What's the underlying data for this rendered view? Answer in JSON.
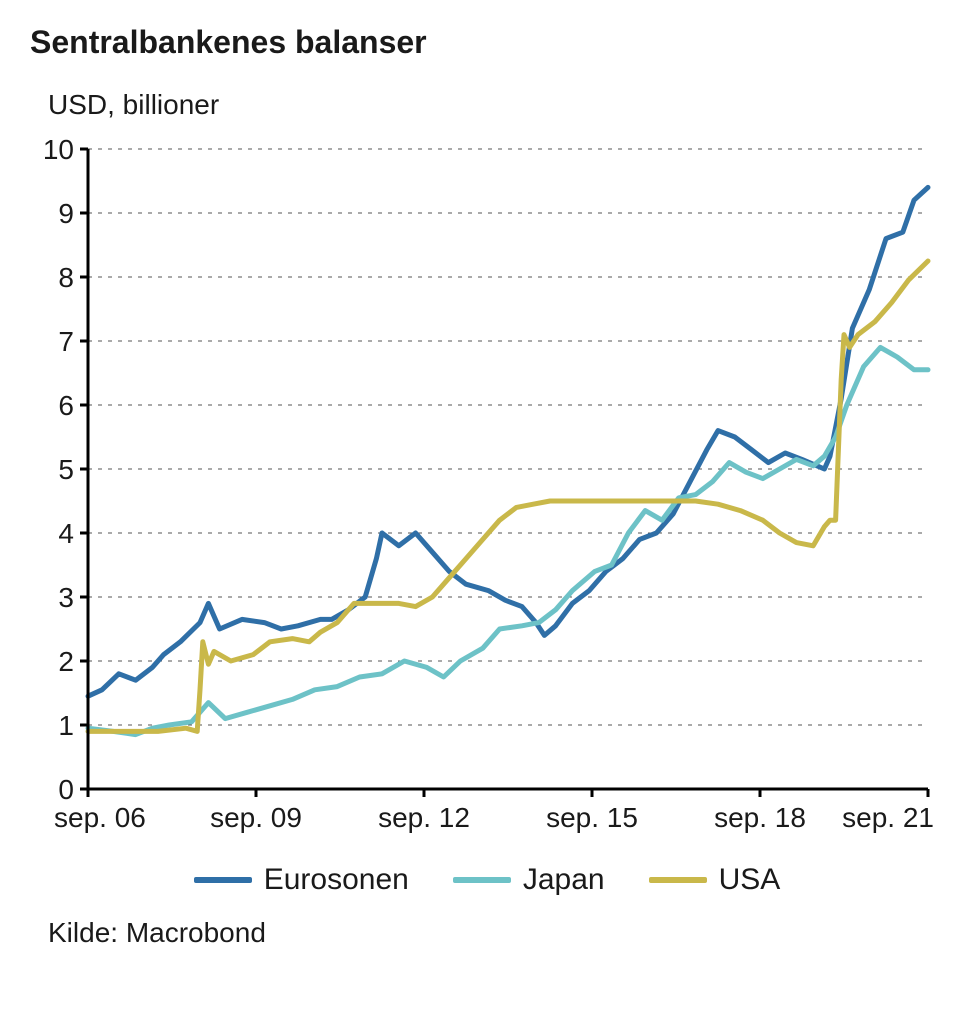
{
  "title": "Sentralbankenes balanser",
  "subtitle": "USD, billioner",
  "source": "Kilde: Macrobond",
  "chart": {
    "type": "line",
    "background_color": "#ffffff",
    "axis_color": "#000000",
    "grid_color": "#555555",
    "grid_dash": "4 6",
    "line_width": 5,
    "title_fontsize": 32,
    "label_fontsize": 28,
    "x": {
      "min": 2006.75,
      "max": 2021.75,
      "ticks": [
        2006.75,
        2009.75,
        2012.75,
        2015.75,
        2018.75,
        2021.75
      ],
      "tick_labels": [
        "sep. 06",
        "sep. 09",
        "sep. 12",
        "sep. 15",
        "sep. 18",
        "sep. 21"
      ]
    },
    "y": {
      "min": 0,
      "max": 10,
      "ticks": [
        0,
        1,
        2,
        3,
        4,
        5,
        6,
        7,
        8,
        9,
        10
      ],
      "tick_labels": [
        "0",
        "1",
        "2",
        "3",
        "4",
        "5",
        "6",
        "7",
        "8",
        "9",
        "10"
      ]
    },
    "series": [
      {
        "name": "Eurosonen",
        "color": "#2f6fa7",
        "points": [
          [
            2006.75,
            1.45
          ],
          [
            2007.0,
            1.55
          ],
          [
            2007.3,
            1.8
          ],
          [
            2007.6,
            1.7
          ],
          [
            2007.9,
            1.9
          ],
          [
            2008.1,
            2.1
          ],
          [
            2008.4,
            2.3
          ],
          [
            2008.75,
            2.6
          ],
          [
            2008.9,
            2.9
          ],
          [
            2009.1,
            2.5
          ],
          [
            2009.5,
            2.65
          ],
          [
            2009.9,
            2.6
          ],
          [
            2010.2,
            2.5
          ],
          [
            2010.5,
            2.55
          ],
          [
            2010.9,
            2.65
          ],
          [
            2011.1,
            2.65
          ],
          [
            2011.4,
            2.8
          ],
          [
            2011.7,
            3.0
          ],
          [
            2011.9,
            3.6
          ],
          [
            2012.0,
            4.0
          ],
          [
            2012.3,
            3.8
          ],
          [
            2012.6,
            4.0
          ],
          [
            2012.9,
            3.7
          ],
          [
            2013.2,
            3.4
          ],
          [
            2013.5,
            3.2
          ],
          [
            2013.9,
            3.1
          ],
          [
            2014.2,
            2.95
          ],
          [
            2014.5,
            2.85
          ],
          [
            2014.75,
            2.6
          ],
          [
            2014.9,
            2.4
          ],
          [
            2015.1,
            2.55
          ],
          [
            2015.4,
            2.9
          ],
          [
            2015.7,
            3.1
          ],
          [
            2016.0,
            3.4
          ],
          [
            2016.3,
            3.6
          ],
          [
            2016.6,
            3.9
          ],
          [
            2016.9,
            4.0
          ],
          [
            2017.2,
            4.3
          ],
          [
            2017.5,
            4.8
          ],
          [
            2017.8,
            5.3
          ],
          [
            2018.0,
            5.6
          ],
          [
            2018.3,
            5.5
          ],
          [
            2018.6,
            5.3
          ],
          [
            2018.9,
            5.1
          ],
          [
            2019.2,
            5.25
          ],
          [
            2019.5,
            5.15
          ],
          [
            2019.9,
            5.0
          ],
          [
            2020.0,
            5.2
          ],
          [
            2020.2,
            6.1
          ],
          [
            2020.4,
            7.2
          ],
          [
            2020.7,
            7.8
          ],
          [
            2021.0,
            8.6
          ],
          [
            2021.3,
            8.7
          ],
          [
            2021.5,
            9.2
          ],
          [
            2021.75,
            9.4
          ]
        ]
      },
      {
        "name": "Japan",
        "color": "#6dc2c7",
        "points": [
          [
            2006.75,
            0.95
          ],
          [
            2007.2,
            0.9
          ],
          [
            2007.6,
            0.85
          ],
          [
            2007.9,
            0.95
          ],
          [
            2008.2,
            1.0
          ],
          [
            2008.6,
            1.05
          ],
          [
            2008.9,
            1.35
          ],
          [
            2009.2,
            1.1
          ],
          [
            2009.6,
            1.2
          ],
          [
            2010.0,
            1.3
          ],
          [
            2010.4,
            1.4
          ],
          [
            2010.8,
            1.55
          ],
          [
            2011.2,
            1.6
          ],
          [
            2011.6,
            1.75
          ],
          [
            2012.0,
            1.8
          ],
          [
            2012.4,
            2.0
          ],
          [
            2012.8,
            1.9
          ],
          [
            2013.1,
            1.75
          ],
          [
            2013.4,
            2.0
          ],
          [
            2013.8,
            2.2
          ],
          [
            2014.1,
            2.5
          ],
          [
            2014.5,
            2.55
          ],
          [
            2014.8,
            2.6
          ],
          [
            2015.1,
            2.8
          ],
          [
            2015.4,
            3.1
          ],
          [
            2015.8,
            3.4
          ],
          [
            2016.1,
            3.5
          ],
          [
            2016.4,
            4.0
          ],
          [
            2016.7,
            4.35
          ],
          [
            2017.0,
            4.2
          ],
          [
            2017.3,
            4.55
          ],
          [
            2017.6,
            4.6
          ],
          [
            2017.9,
            4.8
          ],
          [
            2018.2,
            5.1
          ],
          [
            2018.5,
            4.95
          ],
          [
            2018.8,
            4.85
          ],
          [
            2019.1,
            5.0
          ],
          [
            2019.4,
            5.15
          ],
          [
            2019.7,
            5.05
          ],
          [
            2019.9,
            5.2
          ],
          [
            2020.1,
            5.5
          ],
          [
            2020.3,
            6.0
          ],
          [
            2020.6,
            6.6
          ],
          [
            2020.9,
            6.9
          ],
          [
            2021.2,
            6.75
          ],
          [
            2021.5,
            6.55
          ],
          [
            2021.75,
            6.55
          ]
        ]
      },
      {
        "name": "USA",
        "color": "#c9b84a",
        "points": [
          [
            2006.75,
            0.9
          ],
          [
            2007.2,
            0.9
          ],
          [
            2007.6,
            0.9
          ],
          [
            2008.0,
            0.9
          ],
          [
            2008.5,
            0.95
          ],
          [
            2008.7,
            0.9
          ],
          [
            2008.75,
            1.55
          ],
          [
            2008.8,
            2.3
          ],
          [
            2008.9,
            1.95
          ],
          [
            2009.0,
            2.15
          ],
          [
            2009.3,
            2.0
          ],
          [
            2009.7,
            2.1
          ],
          [
            2010.0,
            2.3
          ],
          [
            2010.4,
            2.35
          ],
          [
            2010.7,
            2.3
          ],
          [
            2010.9,
            2.45
          ],
          [
            2011.2,
            2.6
          ],
          [
            2011.5,
            2.9
          ],
          [
            2011.8,
            2.9
          ],
          [
            2012.0,
            2.9
          ],
          [
            2012.3,
            2.9
          ],
          [
            2012.6,
            2.85
          ],
          [
            2012.9,
            3.0
          ],
          [
            2013.2,
            3.3
          ],
          [
            2013.5,
            3.6
          ],
          [
            2013.8,
            3.9
          ],
          [
            2014.1,
            4.2
          ],
          [
            2014.4,
            4.4
          ],
          [
            2014.7,
            4.45
          ],
          [
            2015.0,
            4.5
          ],
          [
            2015.3,
            4.5
          ],
          [
            2015.7,
            4.5
          ],
          [
            2016.0,
            4.5
          ],
          [
            2016.4,
            4.5
          ],
          [
            2016.8,
            4.5
          ],
          [
            2017.2,
            4.5
          ],
          [
            2017.6,
            4.5
          ],
          [
            2018.0,
            4.45
          ],
          [
            2018.4,
            4.35
          ],
          [
            2018.8,
            4.2
          ],
          [
            2019.1,
            4.0
          ],
          [
            2019.4,
            3.85
          ],
          [
            2019.7,
            3.8
          ],
          [
            2019.9,
            4.1
          ],
          [
            2020.0,
            4.2
          ],
          [
            2020.1,
            4.2
          ],
          [
            2020.2,
            6.4
          ],
          [
            2020.25,
            7.1
          ],
          [
            2020.35,
            6.9
          ],
          [
            2020.5,
            7.1
          ],
          [
            2020.8,
            7.3
          ],
          [
            2021.1,
            7.6
          ],
          [
            2021.4,
            7.95
          ],
          [
            2021.75,
            8.25
          ]
        ]
      }
    ],
    "legend": {
      "items": [
        "Eurosonen",
        "Japan",
        "USA"
      ],
      "position": "bottom"
    }
  }
}
